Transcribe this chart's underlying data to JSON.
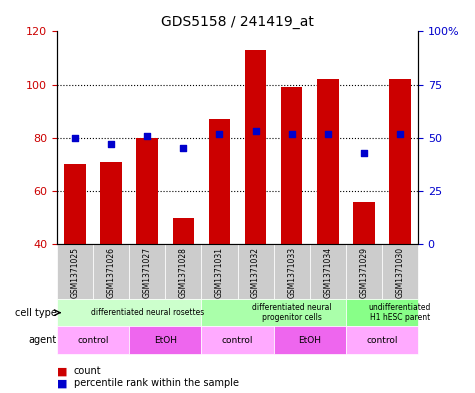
{
  "title": "GDS5158 / 241419_at",
  "samples": [
    "GSM1371025",
    "GSM1371026",
    "GSM1371027",
    "GSM1371028",
    "GSM1371031",
    "GSM1371032",
    "GSM1371033",
    "GSM1371034",
    "GSM1371029",
    "GSM1371030"
  ],
  "counts": [
    70,
    71,
    80,
    50,
    87,
    113,
    99,
    102,
    56,
    102
  ],
  "percentiles": [
    50,
    47,
    51,
    45,
    52,
    53,
    52,
    52,
    43,
    52
  ],
  "ylim_left": [
    40,
    120
  ],
  "ylim_right": [
    0,
    100
  ],
  "yticks_left": [
    40,
    60,
    80,
    100,
    120
  ],
  "yticks_right": [
    0,
    25,
    50,
    75,
    100
  ],
  "ytick_labels_left": [
    "40",
    "60",
    "80",
    "100",
    "120"
  ],
  "ytick_labels_right": [
    "0",
    "25",
    "50",
    "75",
    "100%"
  ],
  "bar_color": "#cc0000",
  "dot_color": "#0000cc",
  "grid_color": "#000000",
  "cell_type_groups": [
    {
      "label": "differentiated neural rosettes",
      "start": 0,
      "end": 4,
      "color": "#ccffcc"
    },
    {
      "label": "differentiated neural\nprogenitor cells",
      "start": 4,
      "end": 8,
      "color": "#aaffaa"
    },
    {
      "label": "undifferentiated\nH1 hESC parent",
      "start": 8,
      "end": 10,
      "color": "#88ff88"
    }
  ],
  "agent_groups": [
    {
      "label": "control",
      "start": 0,
      "end": 2,
      "color": "#ffaaff"
    },
    {
      "label": "EtOH",
      "start": 2,
      "end": 4,
      "color": "#ee66ee"
    },
    {
      "label": "control",
      "start": 4,
      "end": 6,
      "color": "#ffaaff"
    },
    {
      "label": "EtOH",
      "start": 6,
      "end": 8,
      "color": "#ee66ee"
    },
    {
      "label": "control",
      "start": 8,
      "end": 10,
      "color": "#ffaaff"
    }
  ],
  "legend_count_color": "#cc0000",
  "legend_dot_color": "#0000cc",
  "bg_plot": "#ffffff",
  "label_cell_type": "cell type",
  "label_agent": "agent"
}
